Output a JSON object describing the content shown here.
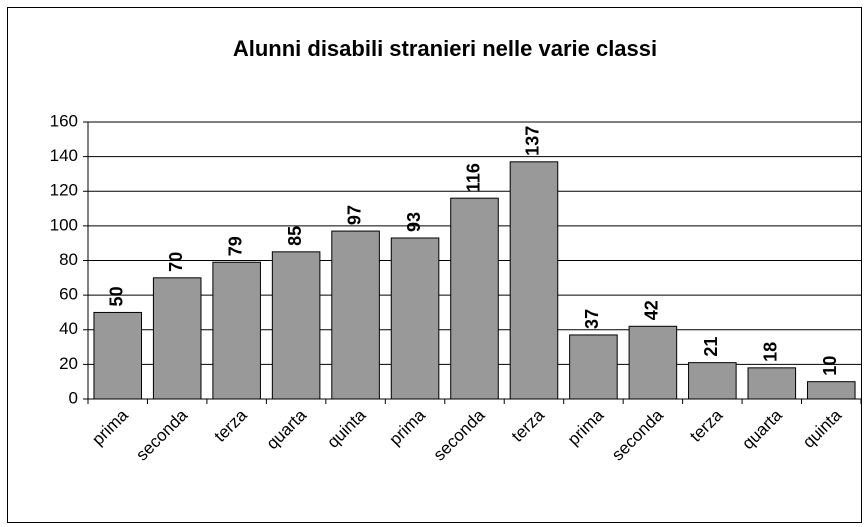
{
  "chart_data": {
    "type": "bar",
    "title": "Alunni disabili stranieri nelle varie classi",
    "categories": [
      "prima",
      "seconda",
      "terza",
      "quarta",
      "quinta",
      "prima",
      "seconda",
      "terza",
      "prima",
      "seconda",
      "terza",
      "quarta",
      "quinta"
    ],
    "values": [
      50,
      70,
      79,
      85,
      97,
      93,
      116,
      137,
      37,
      42,
      21,
      18,
      10
    ],
    "color": "#999999",
    "ylim": [
      0,
      160
    ],
    "yticks": [
      0,
      20,
      40,
      60,
      80,
      100,
      120,
      140,
      160
    ],
    "grid": true
  }
}
